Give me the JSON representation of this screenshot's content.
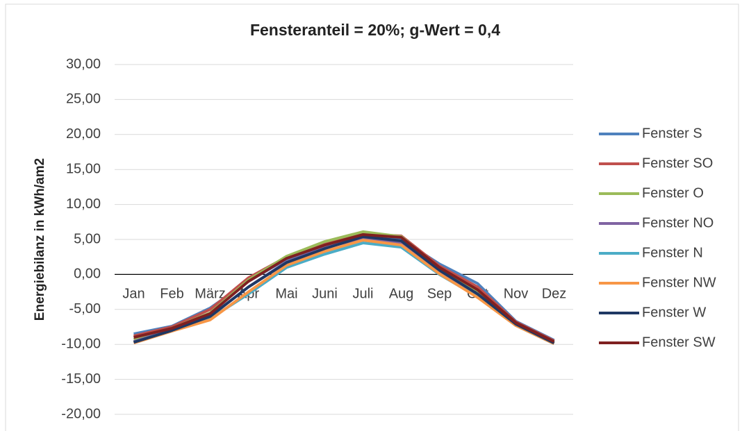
{
  "chart_data": {
    "type": "line",
    "title": "Fensteranteil = 20%; g-Wert = 0,4",
    "y_label": "Energiebilanz in kWh/am2",
    "categories": [
      "Jan",
      "Feb",
      "März",
      "Apr",
      "Mai",
      "Juni",
      "Juli",
      "Aug",
      "Sep",
      "Okt",
      "Nov",
      "Dez"
    ],
    "series": [
      {
        "name": "Fenster S",
        "color": "#4f81bd",
        "values": [
          -8.5,
          -7.4,
          -4.8,
          -1.0,
          2.2,
          4.0,
          5.5,
          5.0,
          1.5,
          -1.3,
          -6.7,
          -9.4
        ]
      },
      {
        "name": "Fenster SO",
        "color": "#c0504d",
        "values": [
          -8.8,
          -7.5,
          -5.0,
          -0.5,
          2.5,
          4.3,
          5.8,
          5.5,
          1.2,
          -1.8,
          -6.8,
          -9.5
        ]
      },
      {
        "name": "Fenster O",
        "color": "#9bbb59",
        "values": [
          -9.3,
          -7.7,
          -5.5,
          -0.8,
          2.6,
          4.7,
          6.1,
          5.4,
          0.8,
          -2.3,
          -7.0,
          -9.7
        ]
      },
      {
        "name": "Fenster NO",
        "color": "#8064a2",
        "values": [
          -9.6,
          -7.9,
          -6.0,
          -1.8,
          1.8,
          3.8,
          5.2,
          4.5,
          0.3,
          -2.8,
          -7.2,
          -9.8
        ]
      },
      {
        "name": "Fenster N",
        "color": "#4bacc6",
        "values": [
          -9.7,
          -8.0,
          -6.3,
          -2.8,
          1.0,
          2.9,
          4.5,
          3.9,
          0.0,
          -3.2,
          -7.3,
          -9.9
        ]
      },
      {
        "name": "Fenster NW",
        "color": "#f79646",
        "values": [
          -9.8,
          -8.1,
          -6.5,
          -2.5,
          1.3,
          3.3,
          4.9,
          4.2,
          0.1,
          -3.3,
          -7.3,
          -9.9
        ]
      },
      {
        "name": "Fenster W",
        "color": "#1f3864",
        "values": [
          -9.7,
          -8.0,
          -6.0,
          -1.8,
          1.7,
          3.7,
          5.4,
          4.8,
          0.6,
          -2.8,
          -7.1,
          -9.8
        ]
      },
      {
        "name": "Fenster SW",
        "color": "#7f2020",
        "values": [
          -9.0,
          -7.7,
          -5.6,
          -1.0,
          2.3,
          4.2,
          5.7,
          5.3,
          1.0,
          -2.2,
          -6.9,
          -9.6
        ]
      }
    ],
    "ylim": [
      -20,
      30
    ],
    "yticks": [
      {
        "value": -20,
        "label": "-20,00"
      },
      {
        "value": -15,
        "label": "-15,00"
      },
      {
        "value": -10,
        "label": "-10,00"
      },
      {
        "value": -5,
        "label": "-5,00"
      },
      {
        "value": 0,
        "label": "0,00"
      },
      {
        "value": 5,
        "label": "5,00"
      },
      {
        "value": 10,
        "label": "10,00"
      },
      {
        "value": 15,
        "label": "15,00"
      },
      {
        "value": 20,
        "label": "20,00"
      },
      {
        "value": 25,
        "label": "25,00"
      },
      {
        "value": 30,
        "label": "30,00"
      }
    ],
    "grid": true,
    "legend": "right"
  }
}
